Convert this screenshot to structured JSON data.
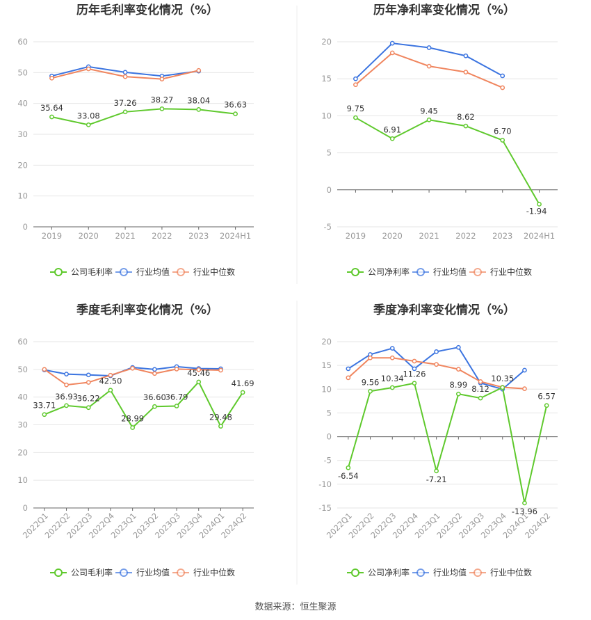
{
  "source": "数据来源：恒生聚源",
  "colors": {
    "company": "#5fc92d",
    "industry_avg": "#3b74e0",
    "industry_median": "#f0855e",
    "grid": "#e6e6e6",
    "axis": "#999999"
  },
  "legend_icon": "circle-line-icon",
  "chart_data": [
    {
      "type": "line",
      "title": "历年毛利率变化情况（%）",
      "categories": [
        "2019",
        "2020",
        "2021",
        "2022",
        "2023",
        "2024H1"
      ],
      "yticks": [
        "0",
        "10",
        "20",
        "30",
        "40",
        "50",
        "60"
      ],
      "ylim": [
        0,
        60
      ],
      "xlabel": "",
      "ylabel": "",
      "grid": true,
      "legend_position": "bottom",
      "series": [
        {
          "name": "公司毛利率",
          "key": "company",
          "values": [
            35.64,
            33.08,
            37.26,
            38.27,
            38.04,
            36.63
          ],
          "labels": [
            "35.64",
            "33.08",
            "37.26",
            "38.27",
            "38.04",
            "36.63"
          ]
        },
        {
          "name": "行业均值",
          "key": "industry_avg",
          "values": [
            48.9,
            51.9,
            50.1,
            48.9,
            50.5,
            null
          ]
        },
        {
          "name": "行业中位数",
          "key": "industry_median",
          "values": [
            48.2,
            51.2,
            48.7,
            47.9,
            50.7,
            null
          ]
        }
      ]
    },
    {
      "type": "line",
      "title": "历年净利率变化情况（%）",
      "categories": [
        "2019",
        "2020",
        "2021",
        "2022",
        "2023",
        "2024H1"
      ],
      "yticks": [
        "-5",
        "0",
        "5",
        "10",
        "15",
        "20"
      ],
      "ylim": [
        -5,
        20
      ],
      "xlabel": "",
      "ylabel": "",
      "grid": true,
      "legend_position": "bottom",
      "series": [
        {
          "name": "公司净利率",
          "key": "company",
          "values": [
            9.75,
            6.91,
            9.45,
            8.62,
            6.7,
            -1.94
          ],
          "labels": [
            "9.75",
            "6.91",
            "9.45",
            "8.62",
            "6.70",
            "-1.94"
          ]
        },
        {
          "name": "行业均值",
          "key": "industry_avg",
          "values": [
            15.0,
            19.8,
            19.2,
            18.1,
            15.4,
            null
          ]
        },
        {
          "name": "行业中位数",
          "key": "industry_median",
          "values": [
            14.2,
            18.5,
            16.7,
            15.9,
            13.8,
            null
          ]
        }
      ]
    },
    {
      "type": "line",
      "title": "季度毛利率变化情况（%）",
      "categories": [
        "2022Q1",
        "2022Q2",
        "2022Q3",
        "2022Q4",
        "2023Q1",
        "2023Q2",
        "2023Q3",
        "2023Q4",
        "2024Q1",
        "2024Q2"
      ],
      "yticks": [
        "0",
        "10",
        "20",
        "30",
        "40",
        "50",
        "60"
      ],
      "ylim": [
        0,
        60
      ],
      "xlabel": "",
      "ylabel": "",
      "grid": true,
      "legend_position": "bottom",
      "series": [
        {
          "name": "公司毛利率",
          "key": "company",
          "values": [
            33.71,
            36.93,
            36.22,
            42.5,
            28.99,
            36.6,
            36.79,
            45.46,
            29.48,
            41.69
          ],
          "labels": [
            "33.71",
            "36.93",
            "36.22",
            "42.50",
            "28.99",
            "36.60",
            "36.79",
            "45.46",
            "29.48",
            "41.69"
          ]
        },
        {
          "name": "行业均值",
          "key": "industry_avg",
          "values": [
            49.8,
            48.3,
            48.0,
            47.7,
            50.7,
            50.0,
            51.0,
            50.3,
            50.2,
            null
          ]
        },
        {
          "name": "行业中位数",
          "key": "industry_median",
          "values": [
            50.0,
            44.4,
            45.3,
            47.9,
            50.4,
            48.5,
            50.1,
            49.9,
            49.7,
            null
          ]
        }
      ]
    },
    {
      "type": "line",
      "title": "季度净利率变化情况（%）",
      "categories": [
        "2022Q1",
        "2022Q2",
        "2022Q3",
        "2022Q4",
        "2023Q1",
        "2023Q2",
        "2023Q3",
        "2023Q4",
        "2024Q1",
        "2024Q2"
      ],
      "yticks": [
        "-15",
        "-10",
        "-5",
        "0",
        "5",
        "10",
        "15",
        "20"
      ],
      "ylim": [
        -15,
        20
      ],
      "xlabel": "",
      "ylabel": "",
      "grid": true,
      "legend_position": "bottom",
      "series": [
        {
          "name": "公司净利率",
          "key": "company",
          "values": [
            -6.54,
            9.56,
            10.34,
            11.26,
            -7.21,
            8.99,
            8.12,
            10.35,
            -13.96,
            6.57
          ],
          "labels": [
            "-6.54",
            "9.56",
            "10.34",
            "11.26",
            "-7.21",
            "8.99",
            "8.12",
            "10.35",
            "-13.96",
            "6.57"
          ]
        },
        {
          "name": "行业均值",
          "key": "industry_avg",
          "values": [
            14.3,
            17.3,
            18.6,
            14.3,
            17.9,
            18.8,
            11.3,
            10.0,
            14.0,
            null
          ]
        },
        {
          "name": "行业中位数",
          "key": "industry_median",
          "values": [
            12.4,
            16.6,
            16.6,
            15.9,
            15.2,
            14.2,
            11.6,
            10.4,
            10.1,
            null
          ]
        }
      ]
    }
  ]
}
